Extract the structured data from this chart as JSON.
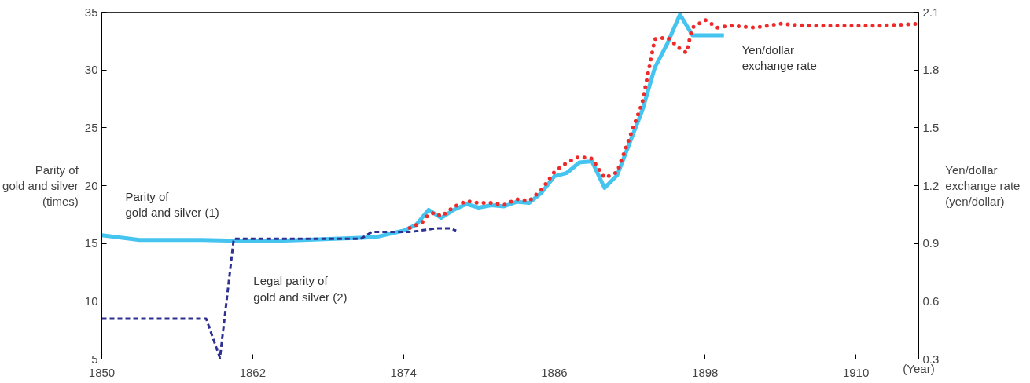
{
  "chart_data": {
    "type": "line",
    "ylabel": "Parity of\ngold and silver\n(times)",
    "y2label": "Yen/dollar\nexchange rate\n(yen/dollar)",
    "xlabel": "(Year)",
    "xlim": [
      1850,
      1915
    ],
    "xticks": [
      1850,
      1862,
      1874,
      1886,
      1898,
      1910
    ],
    "ylim": [
      5,
      35
    ],
    "yticks": [
      5,
      10,
      15,
      20,
      25,
      30,
      35
    ],
    "y2lim": [
      0.3,
      2.1
    ],
    "y2ticks": [
      0.3,
      0.6,
      0.9,
      1.2,
      1.5,
      1.8,
      2.1
    ],
    "grid": false,
    "series": [
      {
        "name": "Parity of\ngold and silver (1)",
        "color": "#45c4f0",
        "line_style": "solid",
        "x": [
          1850,
          1853,
          1858,
          1860,
          1863,
          1866,
          1871,
          1872,
          1874,
          1875,
          1876,
          1877,
          1878,
          1879,
          1880,
          1881,
          1882,
          1883,
          1884,
          1885,
          1886,
          1887,
          1888,
          1889,
          1890,
          1891,
          1892,
          1893,
          1894,
          1895,
          1896,
          1897,
          1899.5
        ],
        "values": [
          15.7,
          15.3,
          15.3,
          15.25,
          15.2,
          15.3,
          15.5,
          15.6,
          16.1,
          16.6,
          17.9,
          17.2,
          17.9,
          18.4,
          18.1,
          18.3,
          18.2,
          18.6,
          18.5,
          19.4,
          20.8,
          21.1,
          22.0,
          22.1,
          19.8,
          20.9,
          23.7,
          26.5,
          30.2,
          32.3,
          34.8,
          33.0,
          33.0
        ]
      },
      {
        "name": "Legal parity of\ngold and silver (2)",
        "color": "#2e3192",
        "line_style": "dashed",
        "x": [
          1850,
          1858.3,
          1859.4,
          1860.5,
          1870.6,
          1871.5,
          1874.6,
          1876.6,
          1877.7,
          1878.2
        ],
        "values": [
          8.5,
          8.5,
          5.1,
          15.4,
          15.4,
          16.0,
          16.0,
          16.3,
          16.3,
          16.1
        ]
      },
      {
        "name": "Yen/dollar\nexchange rate",
        "color": "#ee2a2a",
        "line_style": "dotted",
        "axis": "y2",
        "x": [
          1874.5,
          1875.5,
          1876,
          1876.5,
          1877,
          1878,
          1879,
          1880,
          1881,
          1882,
          1883,
          1884,
          1885,
          1886,
          1887,
          1888,
          1889,
          1890,
          1891,
          1892,
          1893,
          1894,
          1895,
          1896,
          1896.5,
          1897,
          1898,
          1899,
          1900,
          1902,
          1904,
          1906,
          1908,
          1910,
          1912,
          1915
        ],
        "values": [
          0.98,
          1.01,
          1.05,
          1.06,
          1.04,
          1.09,
          1.12,
          1.11,
          1.11,
          1.1,
          1.13,
          1.12,
          1.18,
          1.27,
          1.32,
          1.35,
          1.34,
          1.24,
          1.27,
          1.45,
          1.63,
          1.96,
          1.97,
          1.91,
          1.89,
          2.02,
          2.06,
          2.02,
          2.03,
          2.02,
          2.04,
          2.03,
          2.03,
          2.03,
          2.03,
          2.04
        ]
      }
    ]
  }
}
